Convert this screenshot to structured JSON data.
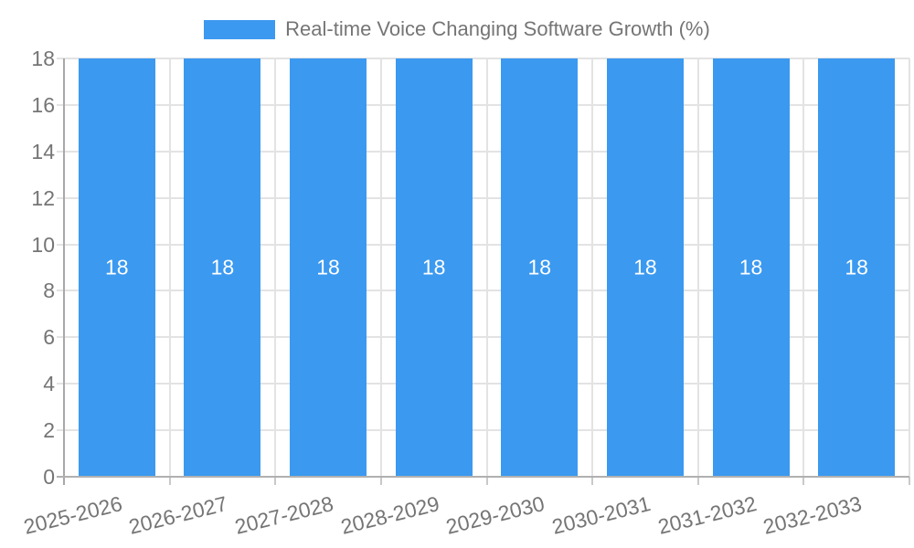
{
  "legend": {
    "label": "Real-time Voice Changing Software Growth (%)",
    "swatch_color": "#3B99F0"
  },
  "chart_data": {
    "type": "bar",
    "title": "Real-time Voice Changing Software Growth (%)",
    "categories": [
      "2025-2026",
      "2026-2027",
      "2027-2028",
      "2028-2029",
      "2029-2030",
      "2030-2031",
      "2031-2032",
      "2032-2033"
    ],
    "values": [
      18,
      18,
      18,
      18,
      18,
      18,
      18,
      18
    ],
    "bar_labels": [
      "18",
      "18",
      "18",
      "18",
      "18",
      "18",
      "18",
      "18"
    ],
    "xlabel": "",
    "ylabel": "",
    "ylim": [
      0,
      18
    ],
    "yticks": [
      0,
      2,
      4,
      6,
      8,
      10,
      12,
      14,
      16,
      18
    ],
    "grid": true,
    "legend_position": "top",
    "bar_color": "#3B99F0",
    "bar_value_label_color": "#ffffff",
    "axis_text_color": "#757575"
  }
}
